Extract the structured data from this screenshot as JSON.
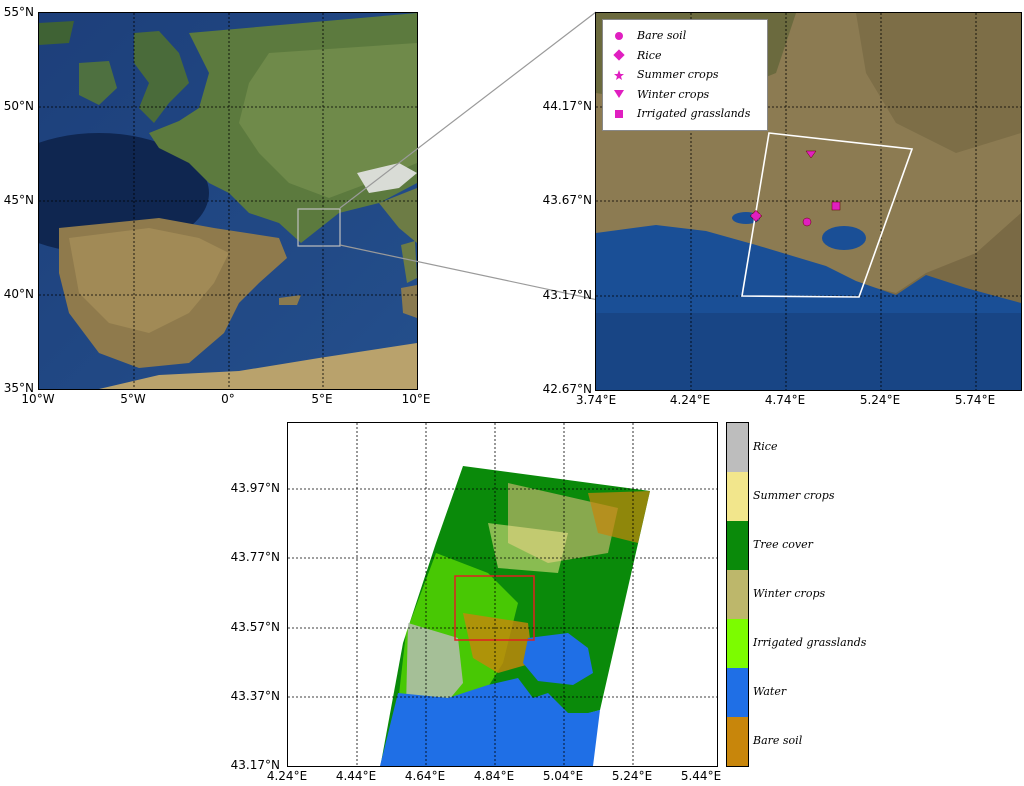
{
  "europe_map": {
    "y_ticks": [
      "55°N",
      "50°N",
      "45°N",
      "40°N",
      "35°N"
    ],
    "x_ticks": [
      "10°W",
      "5°W",
      "0°",
      "5°E",
      "10°E"
    ]
  },
  "zoom_map": {
    "y_ticks": [
      "44.17°N",
      "43.67°N",
      "43.17°N",
      "42.67°N"
    ],
    "x_ticks": [
      "3.74°E",
      "4.24°E",
      "4.74°E",
      "5.24°E",
      "5.74°E"
    ],
    "legend": [
      {
        "label": "Bare soil",
        "marker": "circle",
        "color": "#e01fc0"
      },
      {
        "label": "Rice",
        "marker": "diamond",
        "color": "#e01fc0"
      },
      {
        "label": "Summer crops",
        "marker": "star",
        "color": "#e01fc0"
      },
      {
        "label": "Winter crops",
        "marker": "triangle-down",
        "color": "#e01fc0"
      },
      {
        "label": "Irrigated grasslands",
        "marker": "square",
        "color": "#e01fc0"
      }
    ]
  },
  "classification_map": {
    "y_ticks": [
      "43.97°N",
      "43.77°N",
      "43.57°N",
      "43.37°N",
      "43.17°N"
    ],
    "x_ticks": [
      "4.24°E",
      "4.44°E",
      "4.64°E",
      "4.84°E",
      "5.04°E",
      "5.24°E",
      "5.44°E"
    ],
    "classes": [
      {
        "label": "Rice",
        "color": "#bdbdbd"
      },
      {
        "label": "Summer crops",
        "color": "#f2e68c"
      },
      {
        "label": "Tree cover",
        "color": "#0a8a0a"
      },
      {
        "label": "Winter crops",
        "color": "#bdb76b"
      },
      {
        "label": "Irrigated grasslands",
        "color": "#7cfc00"
      },
      {
        "label": "Water",
        "color": "#1f6fe6"
      },
      {
        "label": "Bare soil",
        "color": "#c8860b"
      }
    ],
    "highlight_color": "#e02020"
  }
}
